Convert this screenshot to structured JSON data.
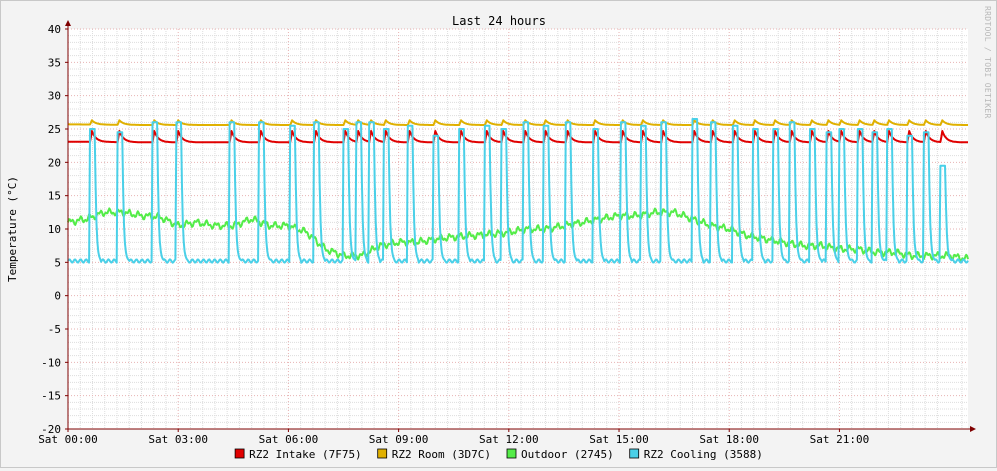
{
  "chart_data": {
    "type": "line",
    "title": "Last 24 hours",
    "ylabel": "Temperature (°C)",
    "xlabel": "",
    "watermark": "RRDTOOL / TOBI OETIKER",
    "ylim": [
      -20,
      40
    ],
    "y_ticks": [
      40,
      35,
      30,
      25,
      20,
      15,
      10,
      5,
      0,
      -5,
      -10,
      -15,
      -20
    ],
    "x_unit": "hours since Sat 00:00",
    "xlim": [
      0,
      24.5
    ],
    "x_ticks": [
      {
        "x": 0,
        "label": "Sat 00:00"
      },
      {
        "x": 3,
        "label": "Sat 03:00"
      },
      {
        "x": 6,
        "label": "Sat 06:00"
      },
      {
        "x": 9,
        "label": "Sat 09:00"
      },
      {
        "x": 12,
        "label": "Sat 12:00"
      },
      {
        "x": 15,
        "label": "Sat 15:00"
      },
      {
        "x": 18,
        "label": "Sat 18:00"
      },
      {
        "x": 21,
        "label": "Sat 21:00"
      }
    ],
    "grid": true,
    "legend_position": "bottom",
    "colors": {
      "background": "#f3f3f3",
      "canvas": "#ffffff",
      "minor_grid": "#dddddd",
      "major_grid": "#e7b2b2",
      "axis": "#7f0000"
    },
    "spike_times": [
      0.6,
      1.35,
      2.3,
      2.95,
      4.4,
      5.2,
      6.05,
      6.7,
      7.5,
      7.85,
      8.2,
      8.6,
      9.25,
      9.95,
      10.65,
      11.35,
      11.8,
      12.4,
      12.95,
      13.55,
      14.3,
      15.05,
      15.6,
      16.15,
      17.0,
      17.5,
      18.1,
      18.65,
      19.2,
      19.65,
      20.2,
      20.65,
      21.0,
      21.5,
      21.9,
      22.3,
      22.85,
      23.3,
      23.75
    ],
    "series": [
      {
        "name": "RZ2 Intake (7F75)",
        "color": "#e00000",
        "baseline": 23.0,
        "spike_peak": 24.7,
        "x": [
          0,
          2,
          4,
          6,
          8,
          10,
          12,
          14,
          16,
          18,
          20,
          22,
          24.5
        ],
        "values": [
          23.1,
          23.0,
          23.0,
          23.0,
          23.0,
          23.0,
          23.0,
          23.0,
          23.0,
          23.0,
          23.0,
          23.0,
          23.0
        ]
      },
      {
        "name": "RZ2 Room (3D7C)",
        "color": "#e0b000",
        "baseline": 25.6,
        "spike_peak": 26.3,
        "x": [
          0,
          2,
          4,
          6,
          8,
          10,
          12,
          14,
          16,
          18,
          20,
          22,
          24.5
        ],
        "values": [
          25.7,
          25.6,
          25.6,
          25.6,
          25.6,
          25.6,
          25.6,
          25.6,
          25.6,
          25.6,
          25.6,
          25.6,
          25.6
        ]
      },
      {
        "name": "Outdoor (2745)",
        "color": "#54ec48",
        "x": [
          0,
          0.5,
          1,
          1.5,
          2,
          2.5,
          3,
          3.5,
          4,
          4.5,
          5,
          5.5,
          6,
          6.5,
          7,
          7.5,
          8,
          8.5,
          9,
          9.5,
          10,
          10.5,
          11,
          11.5,
          12,
          12.5,
          13,
          13.5,
          14,
          14.5,
          15,
          15.5,
          16,
          16.5,
          17,
          17.5,
          18,
          18.5,
          19,
          19.5,
          20,
          20.5,
          21,
          21.5,
          22,
          22.5,
          23,
          23.5,
          24,
          24.5
        ],
        "values": [
          11,
          11.5,
          12.5,
          12.5,
          12,
          11.8,
          10.5,
          11,
          10.5,
          10.5,
          11.5,
          10.5,
          10.5,
          9.5,
          7,
          6,
          6,
          7.5,
          8,
          8,
          8.5,
          8.8,
          9,
          9.2,
          9.5,
          10,
          10,
          10.5,
          11,
          11.5,
          12,
          12,
          12.5,
          12.5,
          11.5,
          10.5,
          10,
          9,
          8.5,
          8,
          7.5,
          7.5,
          7,
          7,
          6.5,
          6.5,
          6,
          6,
          6,
          5.5
        ]
      },
      {
        "name": "RZ2 Cooling (3588)",
        "color": "#4ad0e8",
        "baseline": 5.2,
        "spike_peaks": [
          25,
          24.5,
          26,
          26,
          26,
          26,
          25.5,
          26,
          25,
          26,
          26,
          25,
          25.5,
          24,
          25,
          25.5,
          25,
          26,
          25.5,
          26,
          25,
          26,
          25.5,
          26,
          26.5,
          26,
          25.5,
          25,
          25,
          26,
          25,
          24.5,
          25,
          25,
          24.5,
          25,
          24,
          24.5,
          19.5
        ]
      }
    ]
  }
}
